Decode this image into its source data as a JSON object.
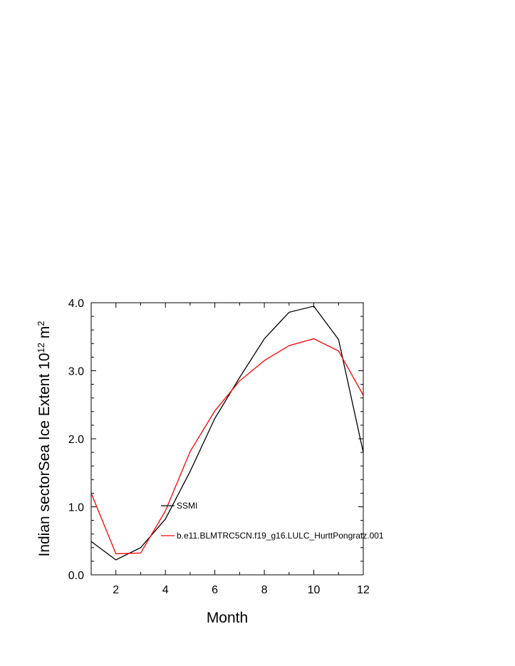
{
  "chart_data": {
    "type": "line",
    "title": "",
    "xlabel": "Month",
    "ylabel": "Indian sectorSea Ice Extent 10",
    "ylabel_superscript": "12",
    "ylabel_unit": " m",
    "ylabel_unit_superscript": "2",
    "xlim": [
      1,
      12
    ],
    "ylim": [
      0,
      4
    ],
    "x": [
      1,
      2,
      3,
      4,
      5,
      6,
      7,
      8,
      9,
      10,
      11,
      12
    ],
    "x_ticks": [
      2,
      4,
      6,
      8,
      10,
      12
    ],
    "x_tick_labels": [
      "2",
      "4",
      "6",
      "8",
      "10",
      "12"
    ],
    "y_ticks": [
      0,
      1,
      2,
      3,
      4
    ],
    "y_tick_labels": [
      "0.0",
      "1.0",
      "2.0",
      "3.0",
      "4.0"
    ],
    "grid": false,
    "legend_position": "inside-lower-left",
    "series": [
      {
        "name": "SSMI",
        "color": "#000000",
        "values": [
          0.49,
          0.22,
          0.4,
          0.82,
          1.52,
          2.3,
          2.9,
          3.47,
          3.86,
          3.95,
          3.46,
          1.8
        ]
      },
      {
        "name": "b.e11.BLMTRC5CN.f19_g16.LULC_HurttPongratz.001",
        "color": "#ff0000",
        "values": [
          1.2,
          0.31,
          0.32,
          0.94,
          1.81,
          2.41,
          2.85,
          3.15,
          3.37,
          3.47,
          3.29,
          2.64
        ]
      }
    ]
  }
}
